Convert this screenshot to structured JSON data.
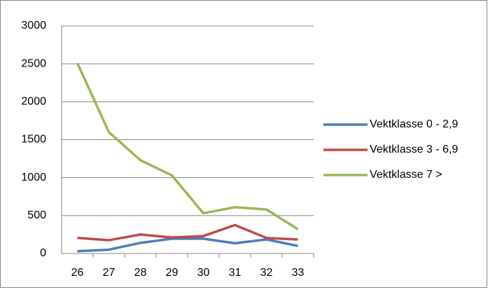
{
  "chart_data": {
    "type": "line",
    "categories": [
      "26",
      "27",
      "28",
      "29",
      "30",
      "31",
      "32",
      "33"
    ],
    "series": [
      {
        "name": "Vektklasse 0 - 2,9",
        "color": "#4a7ebb",
        "values": [
          30,
          50,
          140,
          195,
          195,
          135,
          185,
          100
        ]
      },
      {
        "name": "Vektklasse 3 - 6,9",
        "color": "#be4b48",
        "values": [
          205,
          175,
          250,
          210,
          230,
          375,
          205,
          185
        ]
      },
      {
        "name": "Vektklasse 7 >",
        "color": "#98b954",
        "values": [
          2510,
          1600,
          1230,
          1030,
          530,
          610,
          580,
          320
        ]
      }
    ],
    "ylim": [
      0,
      3000
    ],
    "yticks": [
      0,
      500,
      1000,
      1500,
      2000,
      2500,
      3000
    ],
    "grid": true,
    "legend": "right"
  }
}
